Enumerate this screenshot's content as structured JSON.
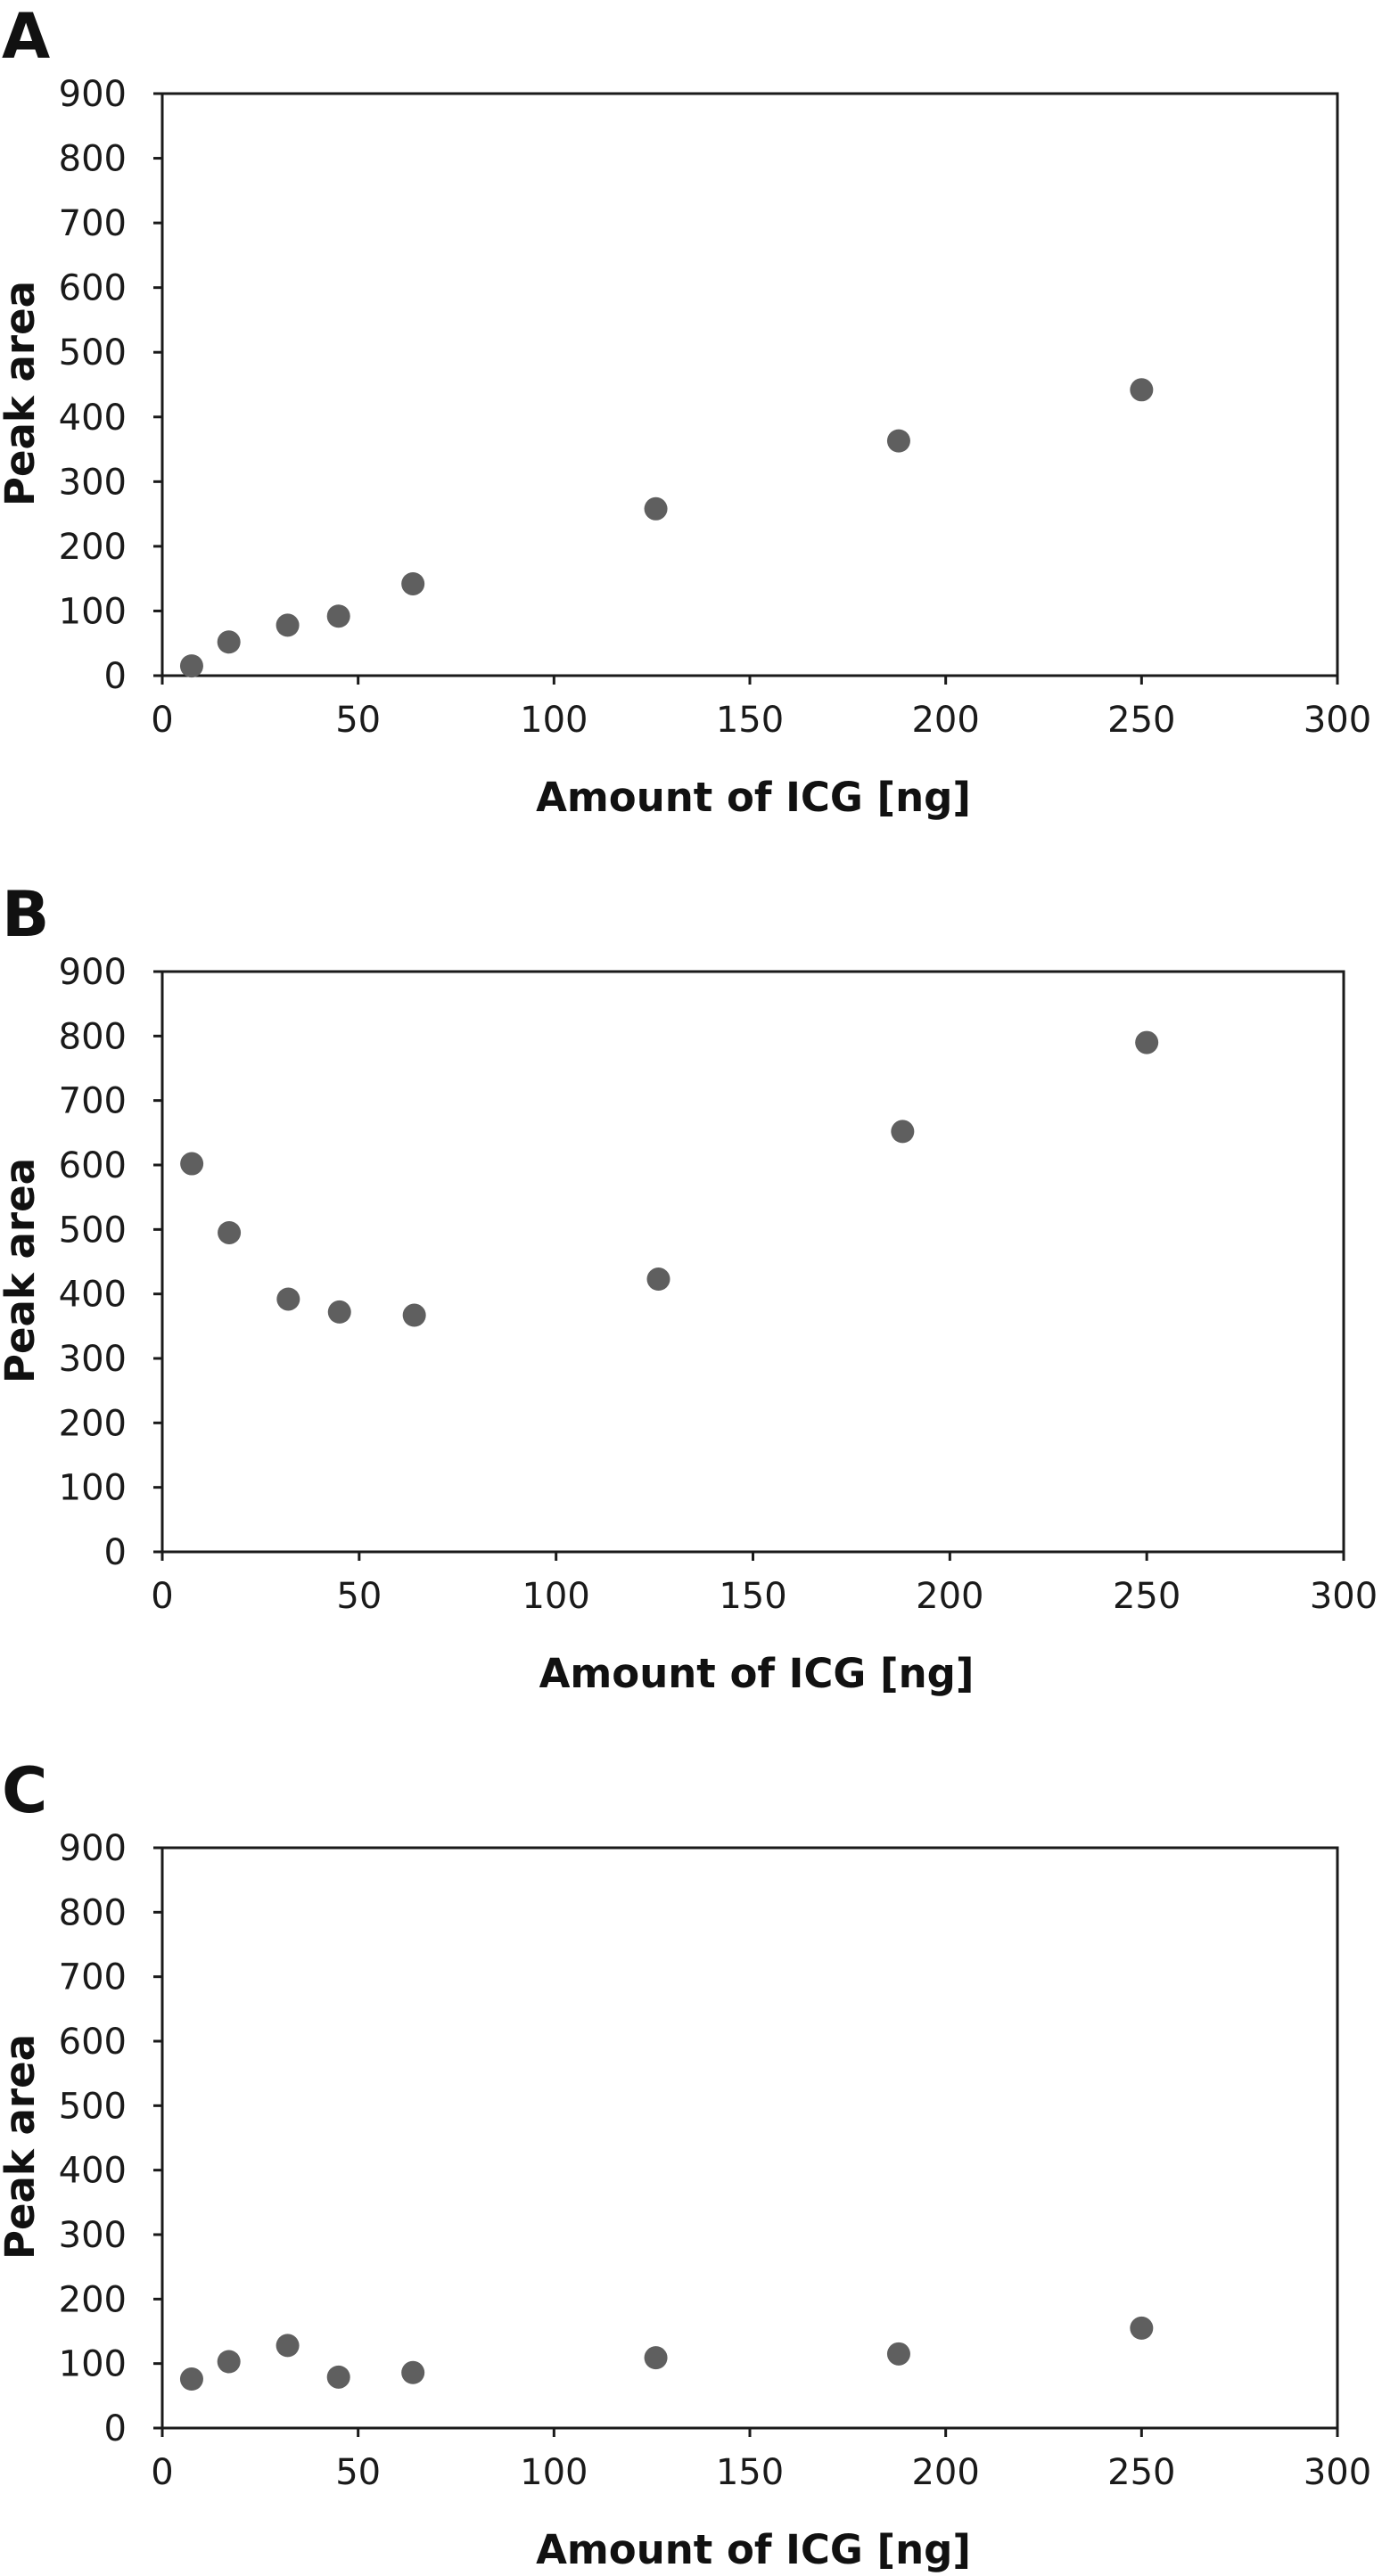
{
  "chart_data": [
    {
      "type": "scatter",
      "panel": "A",
      "xlabel": "Amount of ICG [ng]",
      "ylabel": "Peak area",
      "xlim": [
        0,
        300
      ],
      "ylim": [
        0,
        900
      ],
      "xticks": [
        "0",
        "50",
        "100",
        "150",
        "200",
        "250",
        "300"
      ],
      "yticks": [
        "0",
        "100",
        "200",
        "300",
        "400",
        "500",
        "600",
        "700",
        "800",
        "900"
      ],
      "grid": false,
      "series": [
        {
          "x": [
            7.5,
            17,
            32,
            45,
            64,
            126,
            188,
            250
          ],
          "y": [
            15,
            52,
            78,
            92,
            142,
            258,
            363,
            442
          ]
        }
      ]
    },
    {
      "type": "scatter",
      "panel": "B",
      "xlabel": "Amount of ICG [ng]",
      "ylabel": "Peak area",
      "xlim": [
        0,
        300
      ],
      "ylim": [
        0,
        900
      ],
      "xticks": [
        "0",
        "50",
        "100",
        "150",
        "200",
        "250",
        "300"
      ],
      "yticks": [
        "0",
        "100",
        "200",
        "300",
        "400",
        "500",
        "600",
        "700",
        "800",
        "900"
      ],
      "grid": false,
      "series": [
        {
          "x": [
            7.5,
            17,
            32,
            45,
            64,
            126,
            188,
            250
          ],
          "y": [
            602,
            495,
            392,
            372,
            367,
            423,
            652,
            790
          ]
        }
      ]
    },
    {
      "type": "scatter",
      "panel": "C",
      "xlabel": "Amount of ICG [ng]",
      "ylabel": "Peak area",
      "xlim": [
        0,
        300
      ],
      "ylim": [
        0,
        900
      ],
      "xticks": [
        "0",
        "50",
        "100",
        "150",
        "200",
        "250",
        "300"
      ],
      "yticks": [
        "0",
        "100",
        "200",
        "300",
        "400",
        "500",
        "600",
        "700",
        "800",
        "900"
      ],
      "grid": false,
      "series": [
        {
          "x": [
            7.5,
            17,
            32,
            45,
            64,
            126,
            188,
            250
          ],
          "y": [
            76,
            103,
            128,
            79,
            86,
            109,
            115,
            155
          ]
        }
      ]
    }
  ],
  "style": {
    "point_color": "#5f5f5f",
    "axis_color": "#1a1a1a",
    "background": "#ffffff"
  }
}
